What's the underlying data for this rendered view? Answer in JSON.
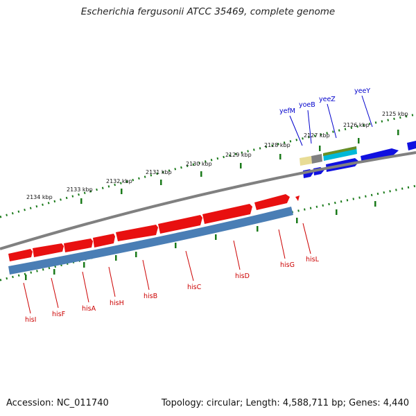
{
  "title": "Escherichia fergusonii ATCC 35469, complete genome",
  "footer": {
    "accession": "Accession: NC_011740",
    "summary": "Topology: circular; Length: 4,588,711 bp; Genes: 4,440"
  },
  "ruler_labels": [
    "2125 kbp",
    "2126 kbp",
    "2127 kbp",
    "2128 kbp",
    "2129 kbp",
    "2130 kbp",
    "2131 kbp",
    "2132 kbp",
    "2133 kbp",
    "2134 kbp"
  ],
  "reverse_genes": [
    "hisL",
    "hisG",
    "hisD",
    "hisC",
    "hisB",
    "hisH",
    "hisA",
    "hisF",
    "hisI"
  ],
  "forward_genes": [
    "yefM",
    "yoeB",
    "yeeZ",
    "yeeY"
  ],
  "colors": {
    "reverse_gene": "#e81010",
    "forward_gene": "#1010e0",
    "reverse_cds": "#4a7eb5",
    "backbone": "#808080",
    "tick": "#1a7a1a",
    "reverse_label": "#cc0000",
    "forward_label": "#0000cc"
  }
}
